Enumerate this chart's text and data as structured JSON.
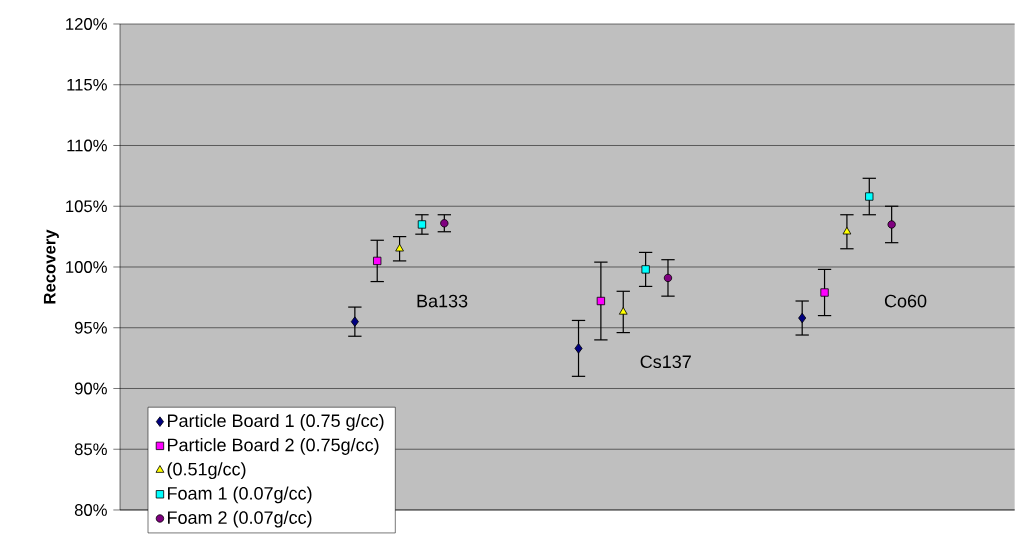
{
  "chart_data": {
    "type": "scatter",
    "ylabel": "Recovery",
    "categories": [
      null,
      null,
      null,
      null,
      null,
      null,
      null,
      null,
      null,
      null,
      null,
      null,
      null,
      null,
      null,
      null,
      null,
      null,
      null,
      null,
      null,
      null,
      null,
      null,
      null,
      null,
      null,
      null,
      null,
      null,
      null,
      null,
      null,
      null,
      null,
      null,
      null,
      null,
      null,
      null
    ],
    "ylim": [
      80,
      120
    ],
    "yticks": [
      {
        "value": 80,
        "label": "80%"
      },
      {
        "value": 85,
        "label": "85%"
      },
      {
        "value": 90,
        "label": "90%"
      },
      {
        "value": 95,
        "label": "95%"
      },
      {
        "value": 100,
        "label": "100%"
      },
      {
        "value": 105,
        "label": "105%"
      },
      {
        "value": 110,
        "label": "110%"
      },
      {
        "value": 115,
        "label": "115%"
      },
      {
        "value": 120,
        "label": "120%"
      }
    ],
    "grid": "y",
    "legend": "bottom left",
    "tick_labels": "y",
    "series": [
      {
        "name": "Particle Board 1 (0.75 g/cc)",
        "color": "#000080",
        "marker": "diamond",
        "values": [
          null,
          null,
          null,
          null,
          null,
          null,
          null,
          null,
          null,
          null,
          95.5,
          null,
          null,
          null,
          null,
          null,
          null,
          null,
          null,
          null,
          93.3,
          null,
          null,
          null,
          null,
          null,
          null,
          null,
          null,
          null,
          95.8,
          null,
          null,
          null,
          null,
          null,
          null,
          null,
          null,
          null
        ],
        "errors": [
          null,
          null,
          null,
          null,
          null,
          null,
          null,
          null,
          null,
          null,
          1.2,
          null,
          null,
          null,
          null,
          null,
          null,
          null,
          null,
          null,
          2.3,
          null,
          null,
          null,
          null,
          null,
          null,
          null,
          null,
          null,
          1.4,
          null,
          null,
          null,
          null,
          null,
          null,
          null,
          null,
          null
        ]
      },
      {
        "name": "Particle Board 2 (0.75g/cc)",
        "color": "#ff00ff",
        "marker": "square",
        "values": [
          null,
          null,
          null,
          null,
          null,
          null,
          null,
          null,
          null,
          null,
          null,
          100.5,
          null,
          null,
          null,
          null,
          null,
          null,
          null,
          null,
          null,
          97.2,
          null,
          null,
          null,
          null,
          null,
          null,
          null,
          null,
          null,
          97.9,
          null,
          null,
          null,
          null,
          null,
          null,
          null,
          null
        ],
        "errors": [
          null,
          null,
          null,
          null,
          null,
          null,
          null,
          null,
          null,
          null,
          null,
          1.7,
          null,
          null,
          null,
          null,
          null,
          null,
          null,
          null,
          null,
          3.2,
          null,
          null,
          null,
          null,
          null,
          null,
          null,
          null,
          null,
          1.9,
          null,
          null,
          null,
          null,
          null,
          null,
          null,
          null
        ]
      },
      {
        "name": "(0.51g/cc)",
        "color": "#ffff00",
        "marker": "triangle",
        "values": [
          null,
          null,
          null,
          null,
          null,
          null,
          null,
          null,
          null,
          null,
          null,
          null,
          101.5,
          null,
          null,
          null,
          null,
          null,
          null,
          null,
          null,
          null,
          96.3,
          null,
          null,
          null,
          null,
          null,
          null,
          null,
          null,
          null,
          102.9,
          null,
          null,
          null,
          null,
          null,
          null,
          null
        ],
        "errors": [
          null,
          null,
          null,
          null,
          null,
          null,
          null,
          null,
          null,
          null,
          null,
          null,
          1,
          null,
          null,
          null,
          null,
          null,
          null,
          null,
          null,
          null,
          1.7,
          null,
          null,
          null,
          null,
          null,
          null,
          null,
          null,
          null,
          1.4,
          null,
          null,
          null,
          null,
          null,
          null,
          null
        ]
      },
      {
        "name": "Foam 1 (0.07g/cc)",
        "color": "#00ffff",
        "marker": "square",
        "values": [
          null,
          null,
          null,
          null,
          null,
          null,
          null,
          null,
          null,
          null,
          null,
          null,
          null,
          103.5,
          null,
          null,
          null,
          null,
          null,
          null,
          null,
          null,
          null,
          99.8,
          null,
          null,
          null,
          null,
          null,
          null,
          null,
          null,
          null,
          105.8,
          null,
          null,
          null,
          null,
          null,
          null
        ],
        "errors": [
          null,
          null,
          null,
          null,
          null,
          null,
          null,
          null,
          null,
          null,
          null,
          null,
          null,
          0.8,
          null,
          null,
          null,
          null,
          null,
          null,
          null,
          null,
          null,
          1.4,
          null,
          null,
          null,
          null,
          null,
          null,
          null,
          null,
          null,
          1.5,
          null,
          null,
          null,
          null,
          null,
          null
        ]
      },
      {
        "name": "Foam 2 (0.07g/cc)",
        "color": "#800080",
        "marker": "circle",
        "values": [
          null,
          null,
          null,
          null,
          null,
          null,
          null,
          null,
          null,
          null,
          null,
          null,
          null,
          null,
          103.6,
          null,
          null,
          null,
          null,
          null,
          null,
          null,
          null,
          null,
          99.1,
          null,
          null,
          null,
          null,
          null,
          null,
          null,
          null,
          null,
          103.5,
          null,
          null,
          null,
          null,
          null
        ],
        "errors": [
          null,
          null,
          null,
          null,
          null,
          null,
          null,
          null,
          null,
          null,
          null,
          null,
          null,
          null,
          0.7,
          null,
          null,
          null,
          null,
          null,
          null,
          null,
          null,
          null,
          1.5,
          null,
          null,
          null,
          null,
          null,
          null,
          null,
          null,
          null,
          1.5,
          null,
          null,
          null,
          null,
          null
        ]
      }
    ],
    "annotations": [
      "Ba133",
      "Cs137",
      "Co60"
    ]
  }
}
